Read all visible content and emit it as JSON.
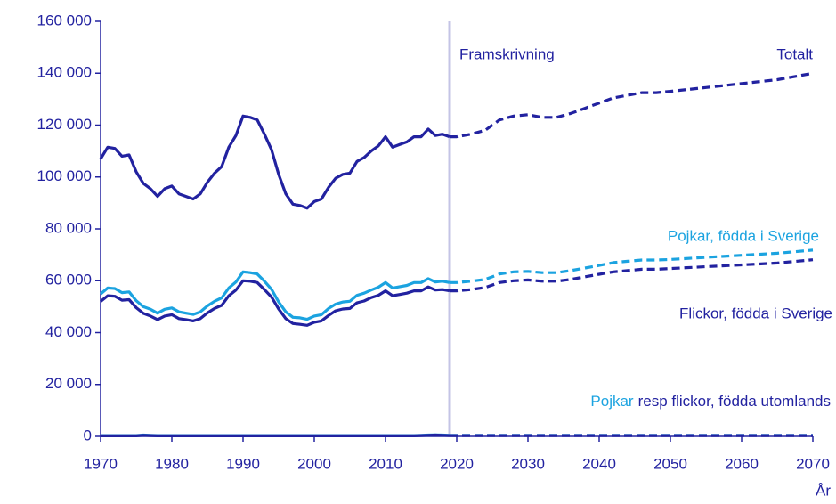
{
  "chart_data": {
    "type": "line",
    "x_label": "År",
    "x": [
      1970,
      1971,
      1972,
      1973,
      1974,
      1975,
      1976,
      1977,
      1978,
      1979,
      1980,
      1981,
      1982,
      1983,
      1984,
      1985,
      1986,
      1987,
      1988,
      1989,
      1990,
      1991,
      1992,
      1993,
      1994,
      1995,
      1996,
      1997,
      1998,
      1999,
      2000,
      2001,
      2002,
      2003,
      2004,
      2005,
      2006,
      2007,
      2008,
      2009,
      2010,
      2011,
      2012,
      2013,
      2014,
      2015,
      2016,
      2017,
      2018,
      2019,
      2020,
      2022,
      2024,
      2026,
      2028,
      2030,
      2032,
      2034,
      2036,
      2038,
      2040,
      2042,
      2044,
      2046,
      2048,
      2050,
      2055,
      2060,
      2065,
      2070
    ],
    "xlim": [
      1970,
      2070
    ],
    "xticks": [
      1970,
      1980,
      1990,
      2000,
      2010,
      2020,
      2030,
      2040,
      2050,
      2060,
      2070
    ],
    "ylim": [
      0,
      160000
    ],
    "yticks": [
      0,
      {
        "value": 20000,
        "label": "20 000"
      },
      {
        "value": 40000,
        "label": "40 000"
      },
      {
        "value": 60000,
        "label": "60 000"
      },
      {
        "value": 80000,
        "label": "80 000"
      },
      {
        "value": 100000,
        "label": "100 000"
      },
      {
        "value": 120000,
        "label": "120 000"
      },
      {
        "value": 140000,
        "label": "140 000"
      },
      {
        "value": 160000,
        "label": "160 000"
      }
    ],
    "annotations": [
      {
        "x": 2019,
        "label": "Framskrivning"
      }
    ],
    "series": [
      {
        "name": "Totalt",
        "color": "#2222a0",
        "values": [
          107000,
          111500,
          111000,
          108000,
          108500,
          102000,
          97500,
          95500,
          92500,
          95500,
          96500,
          93500,
          92500,
          91500,
          93500,
          98000,
          101500,
          104000,
          111500,
          116000,
          123500,
          123000,
          122000,
          116500,
          110500,
          101000,
          93500,
          89500,
          89000,
          88000,
          90500,
          91500,
          96000,
          99500,
          101000,
          101500,
          106000,
          107500,
          110000,
          112000,
          115500,
          111500,
          112500,
          113500,
          115500,
          115500,
          118500,
          116000,
          116500,
          115500,
          115500,
          116500,
          118000,
          122000,
          123500,
          124000,
          123000,
          123000,
          124500,
          126500,
          128500,
          130500,
          131500,
          132500,
          132500,
          133000,
          134500,
          136000,
          137500,
          140000
        ]
      },
      {
        "name": "Pojkar, födda i Sverige",
        "color": "#1ba3e0",
        "values": [
          54900,
          57200,
          57000,
          55400,
          55700,
          52300,
          50000,
          49000,
          47500,
          49000,
          49500,
          48000,
          47500,
          47000,
          48000,
          50300,
          52100,
          53400,
          57200,
          59500,
          63400,
          63100,
          62600,
          59800,
          56700,
          51800,
          48000,
          45900,
          45700,
          45100,
          46400,
          46900,
          49300,
          51000,
          51800,
          52100,
          54400,
          55200,
          56400,
          57500,
          59300,
          57200,
          57700,
          58200,
          59300,
          59300,
          60800,
          59500,
          59800,
          59300,
          59300,
          59800,
          60500,
          62600,
          63400,
          63600,
          63100,
          63100,
          63900,
          64900,
          65900,
          67000,
          67500,
          68000,
          68000,
          68200,
          69000,
          69800,
          70600,
          71800
        ]
      },
      {
        "name": "Flickor, födda i Sverige",
        "color": "#2222a0",
        "values": [
          52000,
          54200,
          54000,
          52500,
          52700,
          49600,
          47400,
          46400,
          45000,
          46400,
          46900,
          45400,
          45000,
          44500,
          45400,
          47600,
          49300,
          50500,
          54200,
          56400,
          60000,
          59800,
          59300,
          56600,
          53700,
          49100,
          45400,
          43500,
          43200,
          42800,
          44000,
          44500,
          46600,
          48400,
          49100,
          49300,
          51500,
          52200,
          53500,
          54400,
          56100,
          54200,
          54700,
          55200,
          56100,
          56100,
          57600,
          56400,
          56600,
          56100,
          56100,
          56600,
          57400,
          59300,
          60000,
          60300,
          59800,
          59800,
          60500,
          61500,
          62500,
          63400,
          63900,
          64400,
          64400,
          64700,
          65400,
          66100,
          66800,
          68100
        ]
      },
      {
        "name": "Pojkar",
        "color": "#1ba3e0",
        "values": [
          300,
          300,
          300,
          300,
          300,
          300,
          500,
          400,
          300,
          300,
          300,
          300,
          300,
          300,
          300,
          300,
          300,
          300,
          300,
          300,
          300,
          300,
          300,
          300,
          300,
          300,
          300,
          300,
          300,
          300,
          300,
          300,
          300,
          300,
          300,
          300,
          300,
          300,
          300,
          300,
          300,
          300,
          300,
          300,
          300,
          400,
          500,
          600,
          500,
          400,
          400,
          400,
          400,
          400,
          400,
          400,
          400,
          400,
          400,
          400,
          400,
          400,
          400,
          400,
          400,
          400,
          400,
          400,
          400,
          400
        ]
      },
      {
        "name": "resp flickor, födda utomlands",
        "color": "#2222a0",
        "values": [
          200,
          200,
          200,
          200,
          200,
          200,
          400,
          300,
          200,
          200,
          200,
          200,
          200,
          200,
          200,
          200,
          200,
          200,
          200,
          200,
          200,
          200,
          200,
          200,
          200,
          200,
          200,
          200,
          200,
          200,
          200,
          200,
          200,
          200,
          200,
          200,
          200,
          200,
          200,
          200,
          200,
          200,
          200,
          200,
          200,
          300,
          400,
          500,
          400,
          300,
          300,
          300,
          300,
          300,
          300,
          300,
          300,
          300,
          300,
          300,
          300,
          300,
          300,
          300,
          300,
          300,
          300,
          300,
          300,
          300
        ]
      }
    ]
  }
}
